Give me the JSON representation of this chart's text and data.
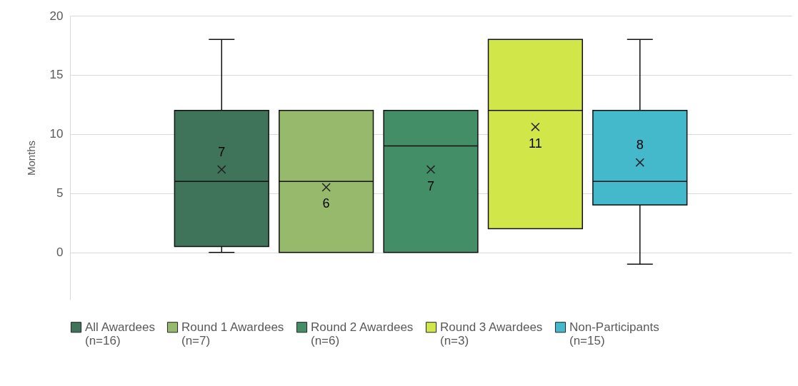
{
  "chart_data": {
    "type": "box",
    "ylabel": "Months",
    "categories": [
      null
    ],
    "series": [
      {
        "name": "All Awardees (n=16)",
        "color": "#3f745a",
        "boxes": [
          {
            "low": 0,
            "q1": 0.5,
            "median": 6,
            "q3": 12,
            "high": 18,
            "mean": 7
          }
        ],
        "value_labels": [
          "7"
        ]
      },
      {
        "name": "Round 1 Awardees (n=7)",
        "color": "#97b96c",
        "boxes": [
          {
            "low": 0,
            "q1": 0,
            "median": 6,
            "q3": 12,
            "high": 12,
            "mean": 5.5
          }
        ],
        "value_labels": [
          "6"
        ]
      },
      {
        "name": "Round 2 Awardees (n=6)",
        "color": "#438e66",
        "boxes": [
          {
            "low": 0,
            "q1": 0,
            "median": 9,
            "q3": 12,
            "high": 12,
            "mean": 7
          }
        ],
        "value_labels": [
          "7"
        ]
      },
      {
        "name": "Round 3 Awardees (n=3)",
        "color": "#d1e648",
        "boxes": [
          {
            "low": 2,
            "q1": 2,
            "median": 12,
            "q3": 18,
            "high": 18,
            "mean": 10.6
          }
        ],
        "value_labels": [
          "11"
        ]
      },
      {
        "name": "Non-Participants (n=15)",
        "color": "#45b9cc",
        "boxes": [
          {
            "low": -1,
            "q1": 4,
            "median": 6,
            "q3": 12,
            "high": 18,
            "mean": 7.6
          }
        ],
        "value_labels": [
          "8"
        ]
      }
    ],
    "ylim": [
      -4,
      20
    ],
    "yticks": [
      0,
      5,
      10,
      15,
      20
    ],
    "grid": "y",
    "legend": "bottom",
    "tick_labels": "y",
    "marker": "cross"
  }
}
